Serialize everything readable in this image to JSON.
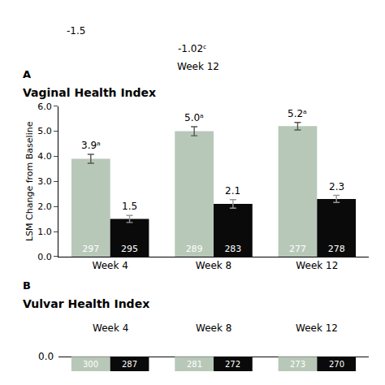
{
  "chart_data": {
    "type": "bar",
    "title": "Vaginal Health Index",
    "y_label": "LSM Change from Baseline",
    "categories": [
      "Week 4",
      "Week 8",
      "Week 12"
    ],
    "series": [
      {
        "color": "#b8c8b8",
        "values": [
          3.9,
          5.0,
          5.2
        ],
        "errors": [
          0.18,
          0.18,
          0.15
        ],
        "value_labels": [
          "3.9ᵃ",
          "5.0ᵃ",
          "5.2ᵃ"
        ],
        "n": [
          297,
          289,
          277
        ]
      },
      {
        "color": "#0a0a0a",
        "values": [
          1.5,
          2.1,
          2.3
        ],
        "errors": [
          0.14,
          0.17,
          0.14
        ],
        "n": [
          295,
          283,
          278
        ]
      }
    ],
    "data_labels": true,
    "ylim": [
      0.0,
      6.0
    ],
    "yticks": [
      {
        "value": 0,
        "label": "0.0"
      },
      {
        "value": 1,
        "label": "1.0"
      },
      {
        "value": 2,
        "label": "2.0"
      },
      {
        "value": 3,
        "label": "3.0"
      },
      {
        "value": 4,
        "label": "4.0"
      },
      {
        "value": 5,
        "label": "5.0"
      },
      {
        "value": 6,
        "label": "6.0"
      }
    ],
    "grid": false,
    "annotations": [
      "-1.5",
      "-1.02ᶜ",
      "Week 12"
    ],
    "panel_labels": [
      "A",
      "B"
    ],
    "footer": {
      "title": "Vulvar Health Index",
      "categories": [
        "Week 4",
        "Week 8",
        "Week 12"
      ],
      "tick_label": "0.0",
      "series": [
        {
          "color": "#b8c8b8",
          "n": [
            300,
            281,
            273
          ]
        },
        {
          "color": "#0a0a0a",
          "n": [
            287,
            272,
            270
          ]
        }
      ]
    }
  }
}
